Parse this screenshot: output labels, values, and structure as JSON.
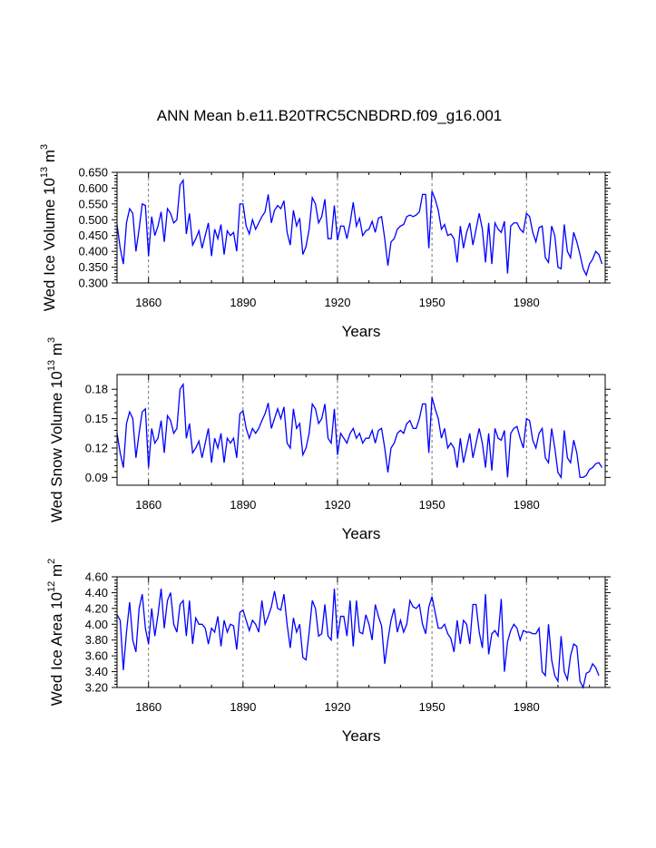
{
  "title": "ANN Mean b.e11.B20TRC5CNBDRD.f09_g16.001",
  "chart_data": [
    {
      "type": "line",
      "name": "ice-volume",
      "xlabel": "Years",
      "ylabel": {
        "main": "Wed Ice Volume 10",
        "exp1": "13",
        "mid": " m",
        "exp2": "3"
      },
      "xlim": [
        1850,
        2005
      ],
      "ylim": [
        0.3,
        0.65
      ],
      "xticks": [
        1860,
        1890,
        1920,
        1950,
        1980
      ],
      "xtick_labels": [
        "1860",
        "1890",
        "1920",
        "1950",
        "1980"
      ],
      "yticks": [
        0.3,
        0.35,
        0.4,
        0.45,
        0.5,
        0.55,
        0.6,
        0.65
      ],
      "ytick_labels": [
        "0.300",
        "0.350",
        "0.400",
        "0.450",
        "0.500",
        "0.550",
        "0.600",
        "0.650"
      ],
      "x_start": 1850,
      "values": [
        0.485,
        0.41,
        0.36,
        0.49,
        0.535,
        0.52,
        0.4,
        0.47,
        0.55,
        0.545,
        0.385,
        0.51,
        0.45,
        0.48,
        0.525,
        0.43,
        0.535,
        0.52,
        0.49,
        0.5,
        0.61,
        0.625,
        0.455,
        0.52,
        0.42,
        0.44,
        0.465,
        0.41,
        0.45,
        0.49,
        0.385,
        0.47,
        0.44,
        0.485,
        0.39,
        0.465,
        0.45,
        0.46,
        0.4,
        0.55,
        0.55,
        0.48,
        0.455,
        0.5,
        0.47,
        0.49,
        0.51,
        0.525,
        0.58,
        0.49,
        0.53,
        0.545,
        0.535,
        0.56,
        0.46,
        0.42,
        0.53,
        0.48,
        0.505,
        0.39,
        0.415,
        0.47,
        0.57,
        0.55,
        0.49,
        0.51,
        0.565,
        0.44,
        0.44,
        0.545,
        0.435,
        0.48,
        0.48,
        0.44,
        0.49,
        0.555,
        0.48,
        0.505,
        0.45,
        0.465,
        0.47,
        0.495,
        0.46,
        0.505,
        0.51,
        0.44,
        0.355,
        0.43,
        0.44,
        0.47,
        0.48,
        0.485,
        0.51,
        0.515,
        0.51,
        0.515,
        0.525,
        0.58,
        0.58,
        0.41,
        0.59,
        0.565,
        0.53,
        0.47,
        0.485,
        0.45,
        0.455,
        0.44,
        0.365,
        0.48,
        0.41,
        0.46,
        0.49,
        0.42,
        0.47,
        0.52,
        0.47,
        0.365,
        0.49,
        0.36,
        0.49,
        0.47,
        0.46,
        0.495,
        0.33,
        0.48,
        0.49,
        0.49,
        0.47,
        0.46,
        0.52,
        0.51,
        0.46,
        0.43,
        0.475,
        0.48,
        0.38,
        0.365,
        0.48,
        0.45,
        0.35,
        0.345,
        0.485,
        0.4,
        0.38,
        0.46,
        0.43,
        0.39,
        0.345,
        0.325,
        0.36,
        0.375,
        0.4,
        0.39,
        0.36
      ]
    },
    {
      "type": "line",
      "name": "snow-volume",
      "xlabel": "Years",
      "ylabel": {
        "main": "Wed Snow Volume 10",
        "exp1": "13",
        "mid": " m",
        "exp2": "3"
      },
      "xlim": [
        1850,
        2005
      ],
      "ylim": [
        0.082,
        0.195
      ],
      "xticks": [
        1860,
        1890,
        1920,
        1950,
        1980
      ],
      "xtick_labels": [
        "1860",
        "1890",
        "1920",
        "1950",
        "1980"
      ],
      "yticks": [
        0.09,
        0.12,
        0.15,
        0.18
      ],
      "ytick_labels": [
        "0.09",
        "0.12",
        "0.15",
        "0.18"
      ],
      "x_start": 1850,
      "values": [
        0.135,
        0.115,
        0.1,
        0.145,
        0.157,
        0.15,
        0.11,
        0.135,
        0.157,
        0.16,
        0.1,
        0.14,
        0.125,
        0.13,
        0.148,
        0.115,
        0.153,
        0.148,
        0.135,
        0.14,
        0.18,
        0.185,
        0.13,
        0.145,
        0.115,
        0.12,
        0.127,
        0.11,
        0.125,
        0.14,
        0.105,
        0.13,
        0.12,
        0.135,
        0.105,
        0.13,
        0.125,
        0.13,
        0.11,
        0.155,
        0.158,
        0.14,
        0.13,
        0.14,
        0.135,
        0.14,
        0.148,
        0.155,
        0.166,
        0.14,
        0.15,
        0.16,
        0.15,
        0.162,
        0.125,
        0.12,
        0.16,
        0.14,
        0.145,
        0.113,
        0.12,
        0.135,
        0.165,
        0.16,
        0.145,
        0.15,
        0.165,
        0.13,
        0.125,
        0.16,
        0.113,
        0.135,
        0.13,
        0.125,
        0.135,
        0.14,
        0.13,
        0.135,
        0.125,
        0.13,
        0.13,
        0.138,
        0.125,
        0.138,
        0.14,
        0.12,
        0.095,
        0.12,
        0.125,
        0.135,
        0.138,
        0.135,
        0.145,
        0.148,
        0.14,
        0.14,
        0.15,
        0.165,
        0.165,
        0.115,
        0.172,
        0.16,
        0.15,
        0.13,
        0.14,
        0.12,
        0.125,
        0.12,
        0.1,
        0.13,
        0.105,
        0.12,
        0.135,
        0.11,
        0.125,
        0.14,
        0.125,
        0.1,
        0.135,
        0.097,
        0.14,
        0.13,
        0.128,
        0.138,
        0.09,
        0.135,
        0.14,
        0.142,
        0.13,
        0.12,
        0.15,
        0.148,
        0.128,
        0.12,
        0.135,
        0.14,
        0.11,
        0.105,
        0.14,
        0.12,
        0.095,
        0.09,
        0.138,
        0.11,
        0.105,
        0.128,
        0.115,
        0.09,
        0.09,
        0.092,
        0.098,
        0.1,
        0.104,
        0.105,
        0.1
      ]
    },
    {
      "type": "line",
      "name": "ice-area",
      "xlabel": "Years",
      "ylabel": {
        "main": "Wed Ice Area 10",
        "exp1": "12",
        "mid": " m",
        "exp2": "2"
      },
      "xlim": [
        1850,
        2005
      ],
      "ylim": [
        3.2,
        4.6
      ],
      "xticks": [
        1860,
        1890,
        1920,
        1950,
        1980
      ],
      "xtick_labels": [
        "1860",
        "1890",
        "1920",
        "1950",
        "1980"
      ],
      "yticks": [
        3.2,
        3.4,
        3.6,
        3.8,
        4.0,
        4.2,
        4.4,
        4.6
      ],
      "ytick_labels": [
        "3.20",
        "3.40",
        "3.60",
        "3.80",
        "4.00",
        "4.20",
        "4.40",
        "4.60"
      ],
      "x_start": 1850,
      "values": [
        4.12,
        4.05,
        3.42,
        3.9,
        4.28,
        3.8,
        3.65,
        4.2,
        4.38,
        3.95,
        3.75,
        4.2,
        3.85,
        4.12,
        4.45,
        3.95,
        4.3,
        4.4,
        4.0,
        3.9,
        4.25,
        4.3,
        3.85,
        4.3,
        3.75,
        4.08,
        4.0,
        4.0,
        3.95,
        3.75,
        3.95,
        3.9,
        4.1,
        3.72,
        4.05,
        3.9,
        4.0,
        3.98,
        3.68,
        4.15,
        4.18,
        4.05,
        3.92,
        4.05,
        4.0,
        3.9,
        4.3,
        4.0,
        4.1,
        4.22,
        4.42,
        4.2,
        4.18,
        4.38,
        4.0,
        3.7,
        4.08,
        3.9,
        4.0,
        3.58,
        3.55,
        3.9,
        4.3,
        4.2,
        3.85,
        3.88,
        4.25,
        3.85,
        3.8,
        4.45,
        3.82,
        4.1,
        4.1,
        3.85,
        4.3,
        3.72,
        4.3,
        3.9,
        3.88,
        4.12,
        4.0,
        3.8,
        4.25,
        4.1,
        3.98,
        3.5,
        3.8,
        4.05,
        4.2,
        3.9,
        4.05,
        3.9,
        4.0,
        4.3,
        4.22,
        4.2,
        4.25,
        4.0,
        3.88,
        4.22,
        4.35,
        4.15,
        3.95,
        3.95,
        4.0,
        3.88,
        3.82,
        3.65,
        4.05,
        3.75,
        4.05,
        4.0,
        3.75,
        4.25,
        4.25,
        3.9,
        3.7,
        4.38,
        3.62,
        3.88,
        3.92,
        3.85,
        4.32,
        3.4,
        3.78,
        3.92,
        4.0,
        3.95,
        3.8,
        3.92,
        3.9,
        3.9,
        3.88,
        3.88,
        3.95,
        3.4,
        3.35,
        4.0,
        3.55,
        3.35,
        3.28,
        3.85,
        3.4,
        3.3,
        3.6,
        3.75,
        3.72,
        3.28,
        3.2,
        3.38,
        3.4,
        3.5,
        3.45,
        3.35
      ]
    }
  ]
}
